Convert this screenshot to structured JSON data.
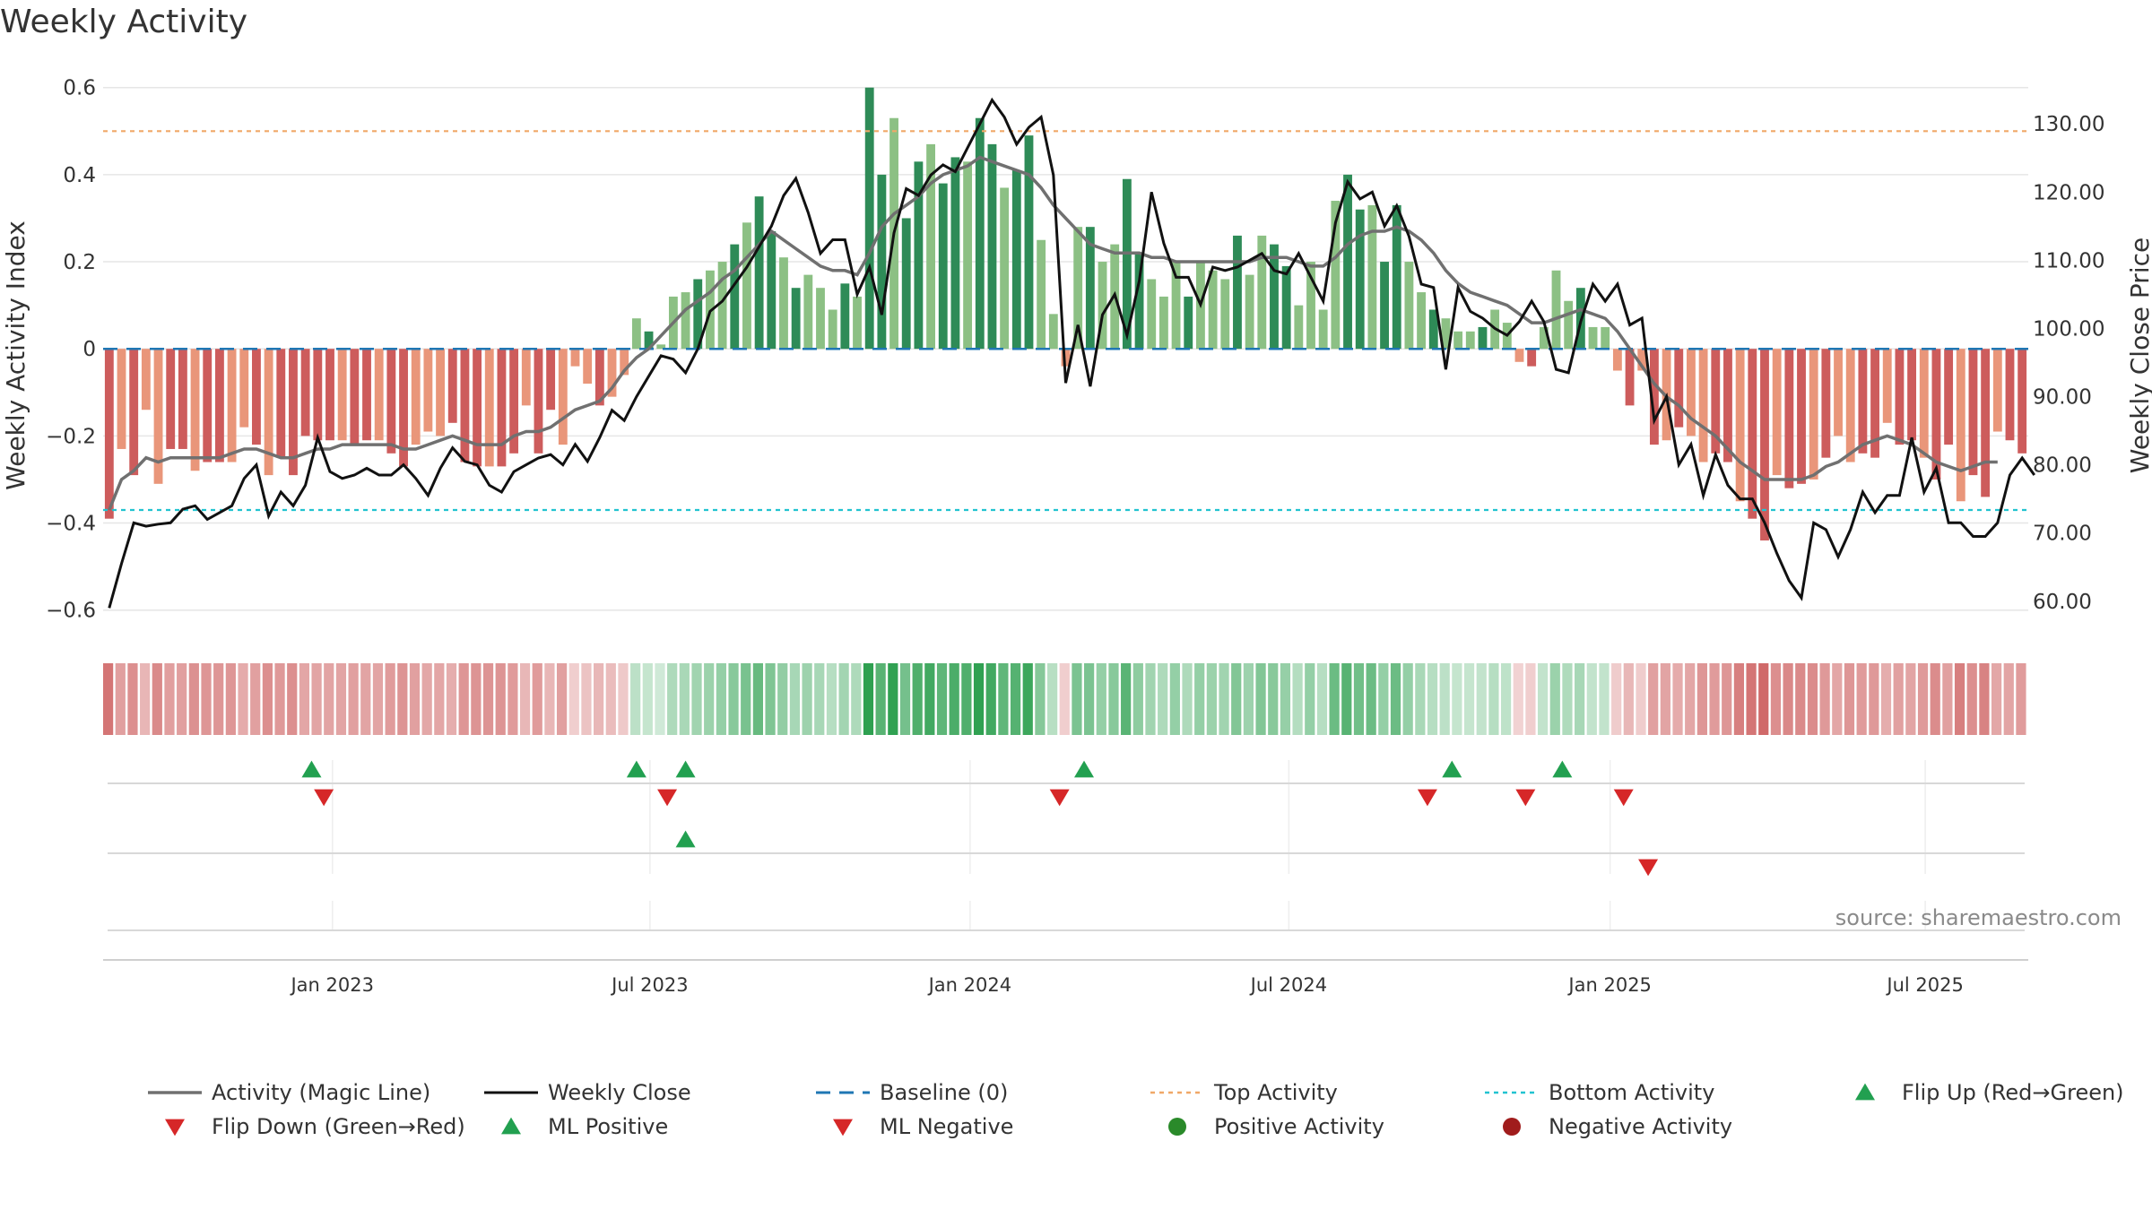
{
  "title": "Weekly Activity",
  "source": "source: sharemaestro.com",
  "colors": {
    "pos_strong": "#2e8b57",
    "pos_light": "#8cc084",
    "neg_strong": "#cd5c5c",
    "neg_light": "#e9967a",
    "magic_line": "#707070",
    "close_line": "#111111",
    "baseline": "#1f77b4",
    "top_line": "#f0a868",
    "bottom_line": "#22c3d0",
    "flip_up": "#22a050",
    "flip_down": "#d62728",
    "grid": "#e6e6e6"
  },
  "chart_data": {
    "type": "bar",
    "title": "Weekly Activity",
    "ylabel_left": "Weekly Activity Index",
    "ylabel_right": "Weekly Close Price",
    "left_ticks": [
      "0.6",
      "0.4",
      "0.2",
      "0",
      "−0.2",
      "−0.4",
      "−0.6"
    ],
    "left_tick_values": [
      0.6,
      0.4,
      0.2,
      0,
      -0.2,
      -0.4,
      -0.6
    ],
    "right_ticks": [
      "130.00",
      "120.00",
      "110.00",
      "100.00",
      "90.00",
      "80.00",
      "70.00",
      "60.00"
    ],
    "right_tick_values": [
      130,
      120,
      110,
      100,
      90,
      80,
      70,
      60
    ],
    "left_ylim": [
      -0.65,
      0.62
    ],
    "right_ylim": [
      55.5,
      136.6
    ],
    "x_ticks": [
      "Jan 2023",
      "Jul 2023",
      "Jan 2024",
      "Jul 2024",
      "Jan 2025",
      "Jul 2025"
    ],
    "x_tick_weeks": [
      18.7,
      44.6,
      70.7,
      96.7,
      122.9,
      148.6
    ],
    "top_activity": 0.5,
    "bottom_activity": -0.37,
    "activity": [
      -0.39,
      -0.23,
      -0.29,
      -0.14,
      -0.31,
      -0.23,
      -0.23,
      -0.28,
      -0.26,
      -0.26,
      -0.26,
      -0.18,
      -0.22,
      -0.29,
      -0.25,
      -0.29,
      -0.2,
      -0.21,
      -0.21,
      -0.21,
      -0.22,
      -0.21,
      -0.21,
      -0.24,
      -0.27,
      -0.22,
      -0.19,
      -0.2,
      -0.17,
      -0.26,
      -0.27,
      -0.27,
      -0.27,
      -0.24,
      -0.13,
      -0.24,
      -0.14,
      -0.22,
      -0.04,
      -0.08,
      -0.13,
      -0.11,
      -0.06,
      0.07,
      0.04,
      0.01,
      0.12,
      0.13,
      0.16,
      0.18,
      0.2,
      0.24,
      0.29,
      0.35,
      0.27,
      0.21,
      0.14,
      0.17,
      0.14,
      0.09,
      0.15,
      0.12,
      0.6,
      0.4,
      0.53,
      0.3,
      0.43,
      0.47,
      0.38,
      0.44,
      0.43,
      0.53,
      0.47,
      0.37,
      0.41,
      0.49,
      0.25,
      0.08,
      -0.04,
      0.28,
      0.28,
      0.2,
      0.24,
      0.39,
      0.22,
      0.16,
      0.12,
      0.2,
      0.12,
      0.2,
      0.18,
      0.16,
      0.26,
      0.17,
      0.26,
      0.24,
      0.19,
      0.1,
      0.2,
      0.09,
      0.34,
      0.4,
      0.32,
      0.33,
      0.2,
      0.33,
      0.2,
      0.13,
      0.09,
      0.07,
      0.04,
      0.04,
      0.05,
      0.09,
      0.06,
      -0.03,
      -0.04,
      0.05,
      0.18,
      0.11,
      0.14,
      0.05,
      0.05,
      -0.05,
      -0.13,
      -0.05,
      -0.22,
      -0.21,
      -0.18,
      -0.2,
      -0.26,
      -0.24,
      -0.26,
      -0.35,
      -0.39,
      -0.44,
      -0.29,
      -0.32,
      -0.31,
      -0.3,
      -0.25,
      -0.2,
      -0.26,
      -0.24,
      -0.25,
      -0.17,
      -0.22,
      -0.21,
      -0.25,
      -0.3,
      -0.22,
      -0.35,
      -0.29,
      -0.34,
      -0.19,
      -0.21,
      -0.24
    ],
    "magic_line": [
      -0.37,
      -0.3,
      -0.28,
      -0.25,
      -0.26,
      -0.25,
      -0.25,
      -0.25,
      -0.25,
      -0.25,
      -0.24,
      -0.23,
      -0.23,
      -0.24,
      -0.25,
      -0.25,
      -0.24,
      -0.23,
      -0.23,
      -0.22,
      -0.22,
      -0.22,
      -0.22,
      -0.22,
      -0.23,
      -0.23,
      -0.22,
      -0.21,
      -0.2,
      -0.21,
      -0.22,
      -0.22,
      -0.22,
      -0.2,
      -0.19,
      -0.19,
      -0.18,
      -0.16,
      -0.14,
      -0.13,
      -0.12,
      -0.09,
      -0.05,
      -0.02,
      0.0,
      0.03,
      0.06,
      0.09,
      0.11,
      0.13,
      0.16,
      0.18,
      0.21,
      0.24,
      0.27,
      0.25,
      0.23,
      0.21,
      0.19,
      0.18,
      0.18,
      0.17,
      0.22,
      0.28,
      0.31,
      0.33,
      0.35,
      0.38,
      0.4,
      0.41,
      0.42,
      0.44,
      0.43,
      0.42,
      0.41,
      0.4,
      0.37,
      0.33,
      0.3,
      0.27,
      0.24,
      0.23,
      0.22,
      0.22,
      0.22,
      0.21,
      0.21,
      0.2,
      0.2,
      0.2,
      0.2,
      0.2,
      0.2,
      0.2,
      0.21,
      0.21,
      0.21,
      0.2,
      0.19,
      0.19,
      0.21,
      0.24,
      0.26,
      0.27,
      0.27,
      0.28,
      0.27,
      0.25,
      0.22,
      0.18,
      0.15,
      0.13,
      0.12,
      0.11,
      0.1,
      0.08,
      0.06,
      0.06,
      0.07,
      0.08,
      0.09,
      0.08,
      0.07,
      0.04,
      0.0,
      -0.04,
      -0.08,
      -0.11,
      -0.13,
      -0.16,
      -0.18,
      -0.2,
      -0.23,
      -0.26,
      -0.28,
      -0.3,
      -0.3,
      -0.3,
      -0.3,
      -0.29,
      -0.27,
      -0.26,
      -0.24,
      -0.22,
      -0.21,
      -0.2,
      -0.21,
      -0.22,
      -0.24,
      -0.26,
      -0.27,
      -0.28,
      -0.27,
      -0.26,
      -0.26
    ],
    "close": [
      59.0,
      65.5,
      71.5,
      71.0,
      71.3,
      71.5,
      73.5,
      74.0,
      72.0,
      73.0,
      74.0,
      78.0,
      80.0,
      72.5,
      76.0,
      74.0,
      77.0,
      84.0,
      79.0,
      78.0,
      78.5,
      79.5,
      78.5,
      78.5,
      80.0,
      78.0,
      75.5,
      79.5,
      82.5,
      80.5,
      80.0,
      77.0,
      76.0,
      79.0,
      80.0,
      81.0,
      81.5,
      80.0,
      83.0,
      80.5,
      84.0,
      88.0,
      86.5,
      90.0,
      93.0,
      96.0,
      95.5,
      93.5,
      97.0,
      102.5,
      104.0,
      106.5,
      109.0,
      112.0,
      115.0,
      119.5,
      122.0,
      117.0,
      111.0,
      113.0,
      113.0,
      105.0,
      109.0,
      102.0,
      114.0,
      120.5,
      119.5,
      122.5,
      124.0,
      123.0,
      126.5,
      130.0,
      133.5,
      131.0,
      127.0,
      129.5,
      131.0,
      122.5,
      92.0,
      100.5,
      91.5,
      102.0,
      105.0,
      99.0,
      107.0,
      120.0,
      112.5,
      107.5,
      107.5,
      103.5,
      109.0,
      108.5,
      109.0,
      110.0,
      111.0,
      108.5,
      108.0,
      111.0,
      107.5,
      104.0,
      115.5,
      121.5,
      119.0,
      120.0,
      115.0,
      118.0,
      113.5,
      106.5,
      106.0,
      94.0,
      106.0,
      102.5,
      101.5,
      100.0,
      99.0,
      101.0,
      104.0,
      101.0,
      94.0,
      93.5,
      101.0,
      106.5,
      104.0,
      106.5,
      100.5,
      101.5,
      86.5,
      90.0,
      80.0,
      83.0,
      75.5,
      81.5,
      77.0,
      75.0,
      75.0,
      71.5,
      67.0,
      63.0,
      60.5,
      71.5,
      70.5,
      66.5,
      70.5,
      76.0,
      73.0,
      75.5,
      75.5,
      84.0,
      76.0,
      79.5,
      71.5,
      71.5,
      69.5,
      69.5,
      71.5,
      78.5,
      81.0,
      78.5
    ],
    "flip_up_weeks": [
      17,
      43.5,
      47.5,
      80,
      110,
      119
    ],
    "flip_down_weeks": [
      18,
      46,
      78,
      108,
      116,
      124
    ],
    "ml_positive_weeks": [
      47.5
    ],
    "ml_negative_weeks": [
      126
    ],
    "positive_activity_weeks": [],
    "negative_activity_weeks": []
  },
  "legend": [
    {
      "key": "magic",
      "label": "Activity (Magic Line)"
    },
    {
      "key": "close",
      "label": "Weekly Close"
    },
    {
      "key": "baseline",
      "label": "Baseline (0)"
    },
    {
      "key": "top",
      "label": "Top Activity"
    },
    {
      "key": "bottom",
      "label": "Bottom Activity"
    },
    {
      "key": "flipup",
      "label": "Flip Up (Red→Green)"
    },
    {
      "key": "flipdown",
      "label": "Flip Down (Green→Red)"
    },
    {
      "key": "mlpos",
      "label": "ML Positive"
    },
    {
      "key": "mlneg",
      "label": "ML Negative"
    },
    {
      "key": "posact",
      "label": "Positive Activity"
    },
    {
      "key": "negact",
      "label": "Negative Activity"
    }
  ]
}
